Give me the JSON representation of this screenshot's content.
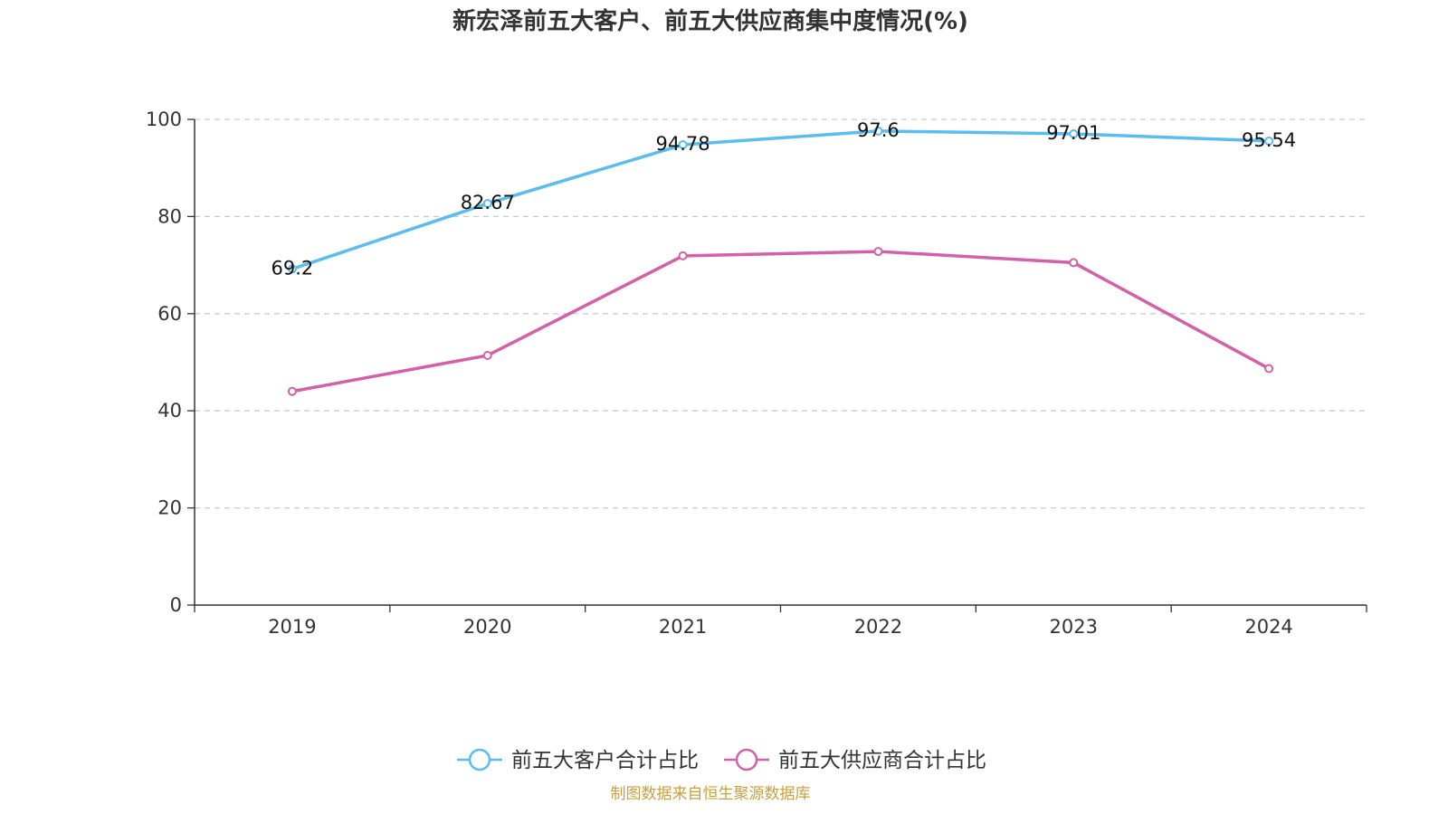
{
  "chart_data": {
    "type": "line",
    "title": "新宏泽前五大客户、前五大供应商集中度情况(%)",
    "categories": [
      "2019",
      "2020",
      "2021",
      "2022",
      "2023",
      "2024"
    ],
    "y_ticks": [
      "0",
      "20",
      "40",
      "60",
      "80",
      "100"
    ],
    "ylim": [
      0,
      100
    ],
    "grid": true,
    "legend_position": "bottom",
    "series": [
      {
        "name": "前五大客户合计占比",
        "color": "#5bbcf0",
        "values": [
          69.2,
          82.67,
          94.78,
          97.6,
          97.01,
          95.54
        ],
        "data_labels": [
          "69.2",
          "82.67",
          "94.78",
          "97.6",
          "97.01",
          "95.54"
        ],
        "show_labels": true
      },
      {
        "name": "前五大供应商合计占比",
        "color": "#d361a8",
        "values": [
          44.0,
          51.4,
          71.9,
          72.8,
          70.5,
          48.7
        ],
        "show_labels": false
      }
    ],
    "source": "制图数据来自恒生聚源数据库",
    "source_color": "#c8a040"
  }
}
